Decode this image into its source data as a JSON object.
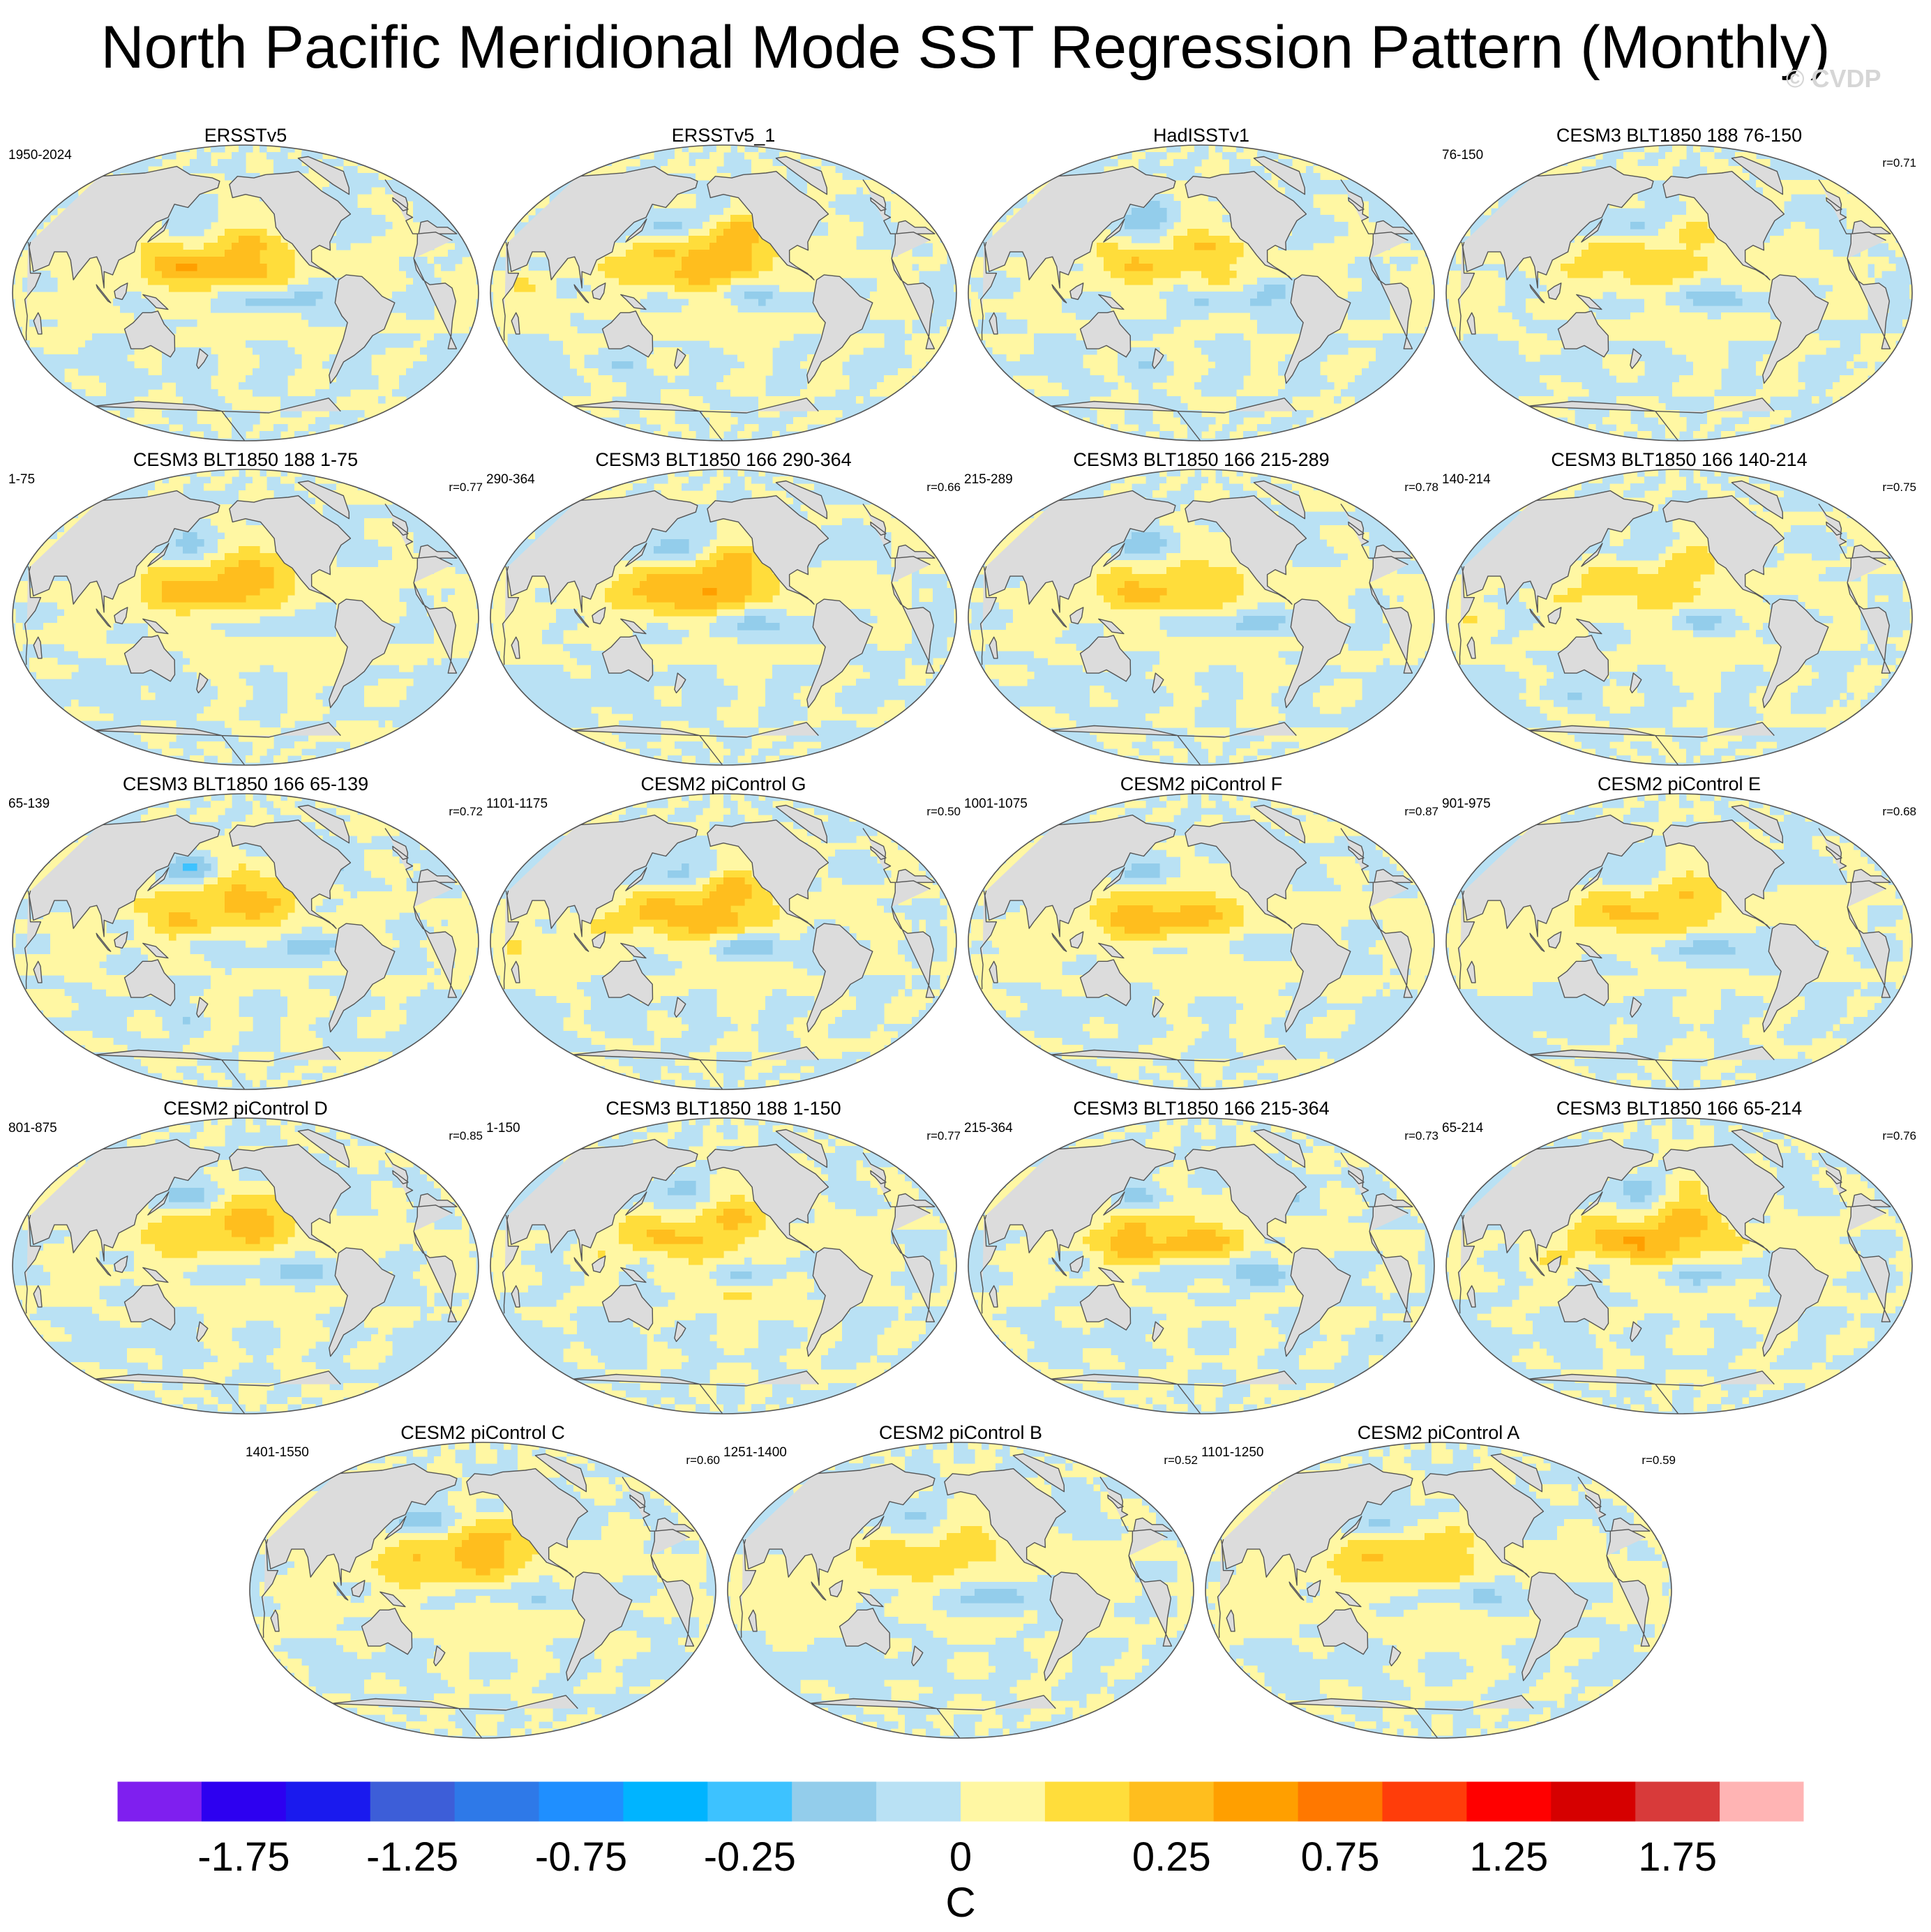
{
  "title": "North Pacific Meridional Mode SST Regression Pattern (Monthly)",
  "copyright": "© CVDP",
  "chart_data": {
    "type": "heatmap",
    "description_note": "Global SST regression maps on the North Pacific Meridional Mode index, one panel per dataset/simulation.",
    "units": "C",
    "panels": [
      {
        "title": "ERSSTv5",
        "period": "1950-2024",
        "r": ""
      },
      {
        "title": "ERSSTv5_1",
        "period": "",
        "r": ""
      },
      {
        "title": "HadISSTv1",
        "period": "",
        "r": ""
      },
      {
        "title": "CESM3 BLT1850 188 76-150",
        "period": "76-150",
        "r": "r=0.71"
      },
      {
        "title": "CESM3 BLT1850 188 1-75",
        "period": "1-75",
        "r": "r=0.77"
      },
      {
        "title": "CESM3 BLT1850 166 290-364",
        "period": "290-364",
        "r": "r=0.66"
      },
      {
        "title": "CESM3 BLT1850 166 215-289",
        "period": "215-289",
        "r": "r=0.78"
      },
      {
        "title": "CESM3 BLT1850 166 140-214",
        "period": "140-214",
        "r": "r=0.75"
      },
      {
        "title": "CESM3 BLT1850 166 65-139",
        "period": "65-139",
        "r": "r=0.72"
      },
      {
        "title": "CESM2 piControl G",
        "period": "1101-1175",
        "r": "r=0.50"
      },
      {
        "title": "CESM2 piControl F",
        "period": "1001-1075",
        "r": "r=0.87"
      },
      {
        "title": "CESM2 piControl E",
        "period": "901-975",
        "r": "r=0.68"
      },
      {
        "title": "CESM2 piControl D",
        "period": "801-875",
        "r": "r=0.85"
      },
      {
        "title": "CESM3 BLT1850 188 1-150",
        "period": "1-150",
        "r": "r=0.77"
      },
      {
        "title": "CESM3 BLT1850 166 215-364",
        "period": "215-364",
        "r": "r=0.73"
      },
      {
        "title": "CESM3 BLT1850 166 65-214",
        "period": "65-214",
        "r": "r=0.76"
      },
      {
        "title": "CESM2 piControl C",
        "period": "1401-1550",
        "r": "r=0.60"
      },
      {
        "title": "CESM2 piControl B",
        "period": "1251-1400",
        "r": "r=0.52"
      },
      {
        "title": "CESM2 piControl A",
        "period": "1101-1250",
        "r": "r=0.59"
      }
    ],
    "colorbar": {
      "label": "C",
      "boundaries": [
        -2.0,
        -1.75,
        -1.5,
        -1.25,
        -1.0,
        -0.75,
        -0.5,
        -0.25,
        0,
        0.25,
        0.5,
        0.75,
        1.0,
        1.25,
        1.5,
        1.75,
        2.0
      ],
      "tick_labels": [
        "-1.75",
        "-1.25",
        "-0.75",
        "-0.25",
        "0",
        "0.25",
        "0.75",
        "1.25",
        "1.75"
      ],
      "tick_values": [
        -1.75,
        -1.25,
        -0.75,
        -0.25,
        0,
        0.25,
        0.75,
        1.25,
        1.75
      ],
      "colors": [
        "#7f1fef",
        "#2d00f0",
        "#1a1aee",
        "#3d5ed8",
        "#2e79e8",
        "#1f8fff",
        "#00b4ff",
        "#3dc2ff",
        "#93cdeb",
        "#b9e1f4",
        "#fff7a3",
        "#ffdd3b",
        "#ffbe1e",
        "#ff9f00",
        "#ff7800",
        "#ff3d0a",
        "#ff0000",
        "#d60000",
        "#d83a3a",
        "#ffb4b4"
      ]
    }
  }
}
